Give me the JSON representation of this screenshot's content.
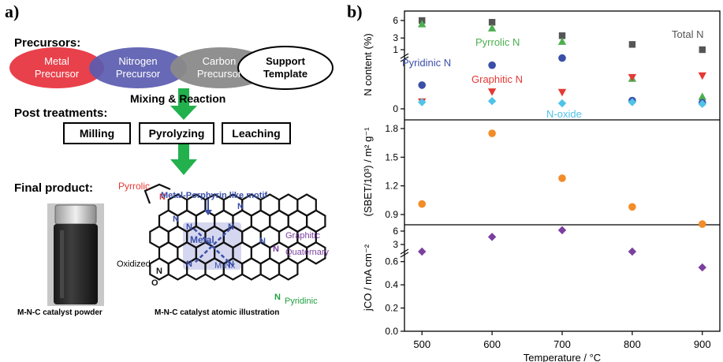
{
  "panel_a": {
    "label": "a)",
    "precursors_heading": "Precursors:",
    "precursors": [
      {
        "line1": "Metal",
        "line2": "Precursor",
        "color": "#e8414b"
      },
      {
        "line1": "Nitrogen",
        "line2": "Precursor",
        "color": "#5a5bb0"
      },
      {
        "line1": "Carbon",
        "line2": "Precursor",
        "color": "#8a8a8a"
      },
      {
        "line1": "Support",
        "line2": "Template",
        "color": "#ffffff"
      }
    ],
    "mixing_label": "Mixing & Reaction",
    "post_heading": "Post treatments:",
    "treatments": [
      "Milling",
      "Pyrolyzing",
      "Leaching"
    ],
    "final_heading": "Final product:",
    "photo_caption": "M-N-C catalyst powder",
    "illustration_caption": "M-N-C catalyst atomic illustration",
    "labels": {
      "pyrrolic": "Pyrrolic",
      "motif": "Metal-Porphyrin like motif",
      "metal": "Metal",
      "mnx": "M-Nx",
      "graphitic": "Graphitic",
      "quaternary": "Quaternary",
      "oxidized": "Oxidized",
      "pyridinic": "Pyridinic",
      "n": "N",
      "o": "O"
    },
    "arrow_color": "#22b14c"
  },
  "chart_data": {
    "type": "scatter",
    "panel_label": "b)",
    "x": [
      500,
      600,
      700,
      800,
      900
    ],
    "xlabel": "Temperature / °C",
    "xticks": [
      "500",
      "600",
      "700",
      "800",
      "900"
    ],
    "subplots": [
      {
        "ylabel": "N content (%)",
        "yticks_upper": [
          "6",
          "3",
          "1"
        ],
        "yticks_lower": [
          "0"
        ],
        "broken_axis": true,
        "series": [
          {
            "name": "Total N",
            "marker": "square",
            "color": "#555555",
            "values": [
              6.0,
              5.7,
              3.4,
              1.9,
              1.0
            ]
          },
          {
            "name": "Pyrrolic N",
            "marker": "triangle-up",
            "color": "#4caf50",
            "values": [
              5.4,
              4.7,
              2.4,
              0.55,
              0.22
            ]
          },
          {
            "name": "Pyridinic N",
            "marker": "circle",
            "color": "#3a4fa8",
            "values": [
              0.43,
              0.79,
              0.92,
              0.15,
              0.11
            ]
          },
          {
            "name": "Graphitic N",
            "marker": "triangle-down",
            "color": "#e53935",
            "values": [
              0.13,
              0.31,
              0.3,
              0.57,
              0.6
            ]
          },
          {
            "name": "N-oxide",
            "marker": "diamond",
            "color": "#4fc3e8",
            "values": [
              0.12,
              0.14,
              0.1,
              0.12,
              0.09
            ]
          }
        ]
      },
      {
        "ylabel": "(SBET/10³) / m² g⁻¹",
        "yticks": [
          "0.9",
          "1.2",
          "1.5",
          "1.8"
        ],
        "series": [
          {
            "marker": "circle",
            "color": "#f28c28",
            "values": [
              1.01,
              1.75,
              1.28,
              0.98,
              0.8
            ]
          }
        ]
      },
      {
        "ylabel": "jCO / mA cm⁻²",
        "yticks_upper": [
          "6",
          "3"
        ],
        "yticks_lower": [
          "0.6",
          "0.4",
          "0.2",
          "0.0"
        ],
        "broken_axis": true,
        "series": [
          {
            "marker": "diamond",
            "color": "#7b3fa0",
            "values": [
              2.0,
              4.7,
              6.2,
              2.3,
              0.55
            ]
          }
        ]
      }
    ]
  }
}
